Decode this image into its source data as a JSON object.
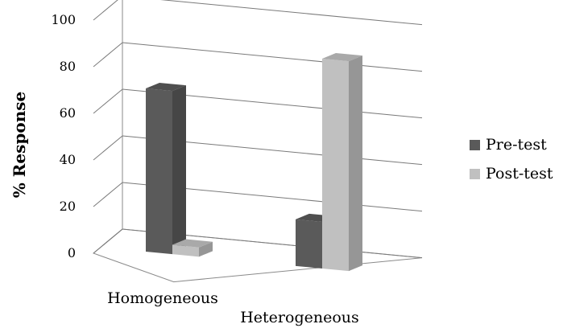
{
  "chart_data": {
    "type": "bar",
    "style": "3d-clustered-column",
    "ylabel": "% Response",
    "xlabel": "",
    "title": "",
    "ylim": [
      0,
      100
    ],
    "yticks": [
      "0",
      "20",
      "40",
      "60",
      "80",
      "100"
    ],
    "grid": true,
    "legend_position": "right",
    "categories": [
      "Homogeneous",
      "Heterogeneous"
    ],
    "series": [
      {
        "name": "Pre-test",
        "values": [
          70,
          20
        ],
        "color": "#5a5a5a"
      },
      {
        "name": "Post-test",
        "values": [
          4,
          90
        ],
        "color": "#c0c0c0"
      }
    ]
  }
}
